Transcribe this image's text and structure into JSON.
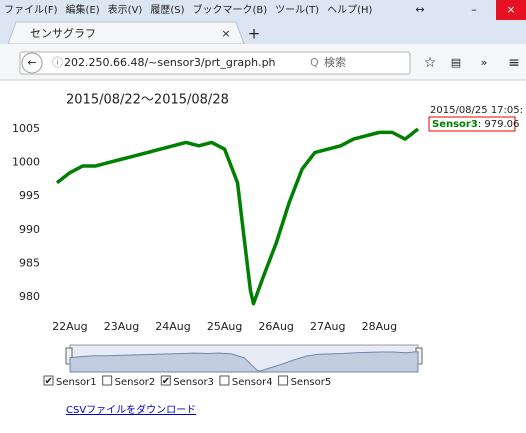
{
  "menu": [
    "ファイル(F)",
    "編集(E)",
    "表示(V)",
    "履歴(S)",
    "ブックマーク(B)",
    "ツール(T)",
    "ヘルプ(H)"
  ],
  "tab": {
    "title": "センサグラフ"
  },
  "address": {
    "url": "202.250.66.48/~sensor3/prt_graph.ph",
    "search": "検索"
  },
  "chart_data": {
    "type": "line",
    "title": "2015/08/22〜2015/08/28",
    "x": [
      21.75,
      22,
      22.25,
      22.5,
      22.75,
      23,
      23.25,
      23.5,
      23.75,
      24,
      24.25,
      24.5,
      24.75,
      25,
      25.25,
      25.5,
      25.56,
      25.75,
      26,
      26.25,
      26.5,
      26.75,
      27,
      27.25,
      27.5,
      27.75,
      28,
      28.25,
      28.5,
      28.75
    ],
    "series": [
      {
        "name": "Sensor3",
        "color": "#008000",
        "values": [
          997,
          998.5,
          999.5,
          999.5,
          1000,
          1000.5,
          1001,
          1001.5,
          1002,
          1002.5,
          1003,
          1002.5,
          1003,
          1002,
          997,
          981,
          979,
          983,
          988,
          994,
          999,
          1001.5,
          1002,
          1002.5,
          1003.5,
          1004,
          1004.5,
          1004.5,
          1003.5,
          1005
        ]
      }
    ],
    "xlim": [
      21.75,
      28.75
    ],
    "ylim": [
      978,
      1008.5
    ],
    "xticks": [
      {
        "value": 22,
        "label": "22Aug"
      },
      {
        "value": 23,
        "label": "23Aug"
      },
      {
        "value": 24,
        "label": "24Aug"
      },
      {
        "value": 25,
        "label": "25Aug"
      },
      {
        "value": 26,
        "label": "26Aug"
      },
      {
        "value": 27,
        "label": "27Aug"
      },
      {
        "value": 28,
        "label": "28Aug"
      }
    ],
    "yticks": [
      980,
      985,
      990,
      995,
      1000,
      1005
    ],
    "tooltip": {
      "date": "2015/08/25 17:05:",
      "series": "Sensor3",
      "label": ": 979.06"
    }
  },
  "sensors": [
    {
      "name": "Sensor1",
      "checked": true
    },
    {
      "name": "Sensor2",
      "checked": false
    },
    {
      "name": "Sensor3",
      "checked": true
    },
    {
      "name": "Sensor4",
      "checked": false
    },
    {
      "name": "Sensor5",
      "checked": false
    }
  ],
  "link": "CSVファイルをダウンロード"
}
